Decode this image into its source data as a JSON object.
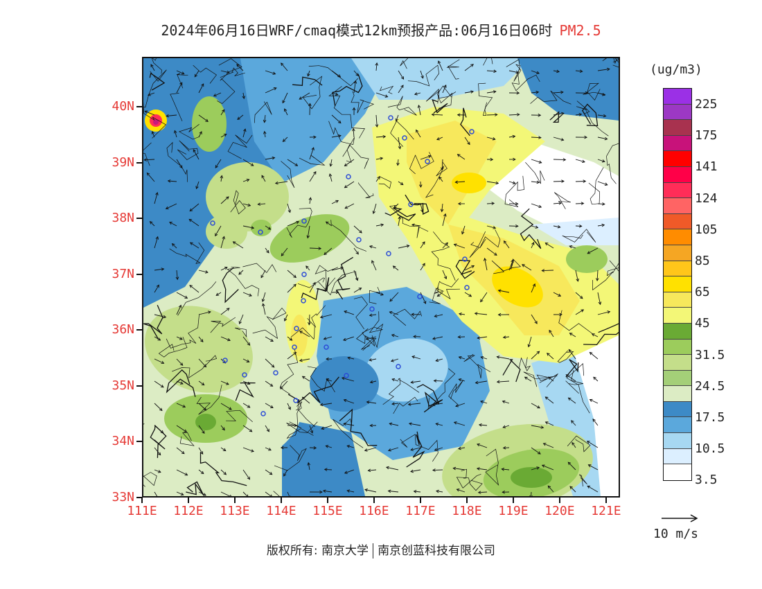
{
  "title": {
    "main": "2024年06月16日WRF/cmaq模式12km预报产品:06月16日06时",
    "variable": "PM2.5"
  },
  "map": {
    "lon_ticks": [
      "111E",
      "112E",
      "113E",
      "114E",
      "115E",
      "116E",
      "117E",
      "118E",
      "119E",
      "120E",
      "121E"
    ],
    "lat_ticks": [
      "40N",
      "39N",
      "38N",
      "37N",
      "36N",
      "35N",
      "34N",
      "33N"
    ],
    "lon_range": [
      111,
      121.3
    ],
    "lat_range": [
      33,
      40.9
    ],
    "fill_colors": {
      "water": "#ffffff",
      "very_clean": "#dcefff",
      "clean": "#a7d8f2",
      "clean_mid": "#5ba8dc",
      "clean_dark": "#3d8ac6",
      "light": "#dcecc4",
      "light_green": "#c4de8a",
      "green": "#9ccc5c",
      "green_dark": "#6aaa34",
      "yellow_pale": "#f3f777",
      "yellow": "#f7e85c",
      "yellow_deep": "#ffe100",
      "hot": "#ff2d58",
      "hot_core": "#c81b7a"
    },
    "stations_color": "#2b4bd6"
  },
  "colorbar": {
    "unit": "(ug/m3)",
    "bins": [
      {
        "color": "#9b30e6"
      },
      {
        "color": "#9c38c4"
      },
      {
        "color": "#a8324f"
      },
      {
        "color": "#c8127a"
      },
      {
        "color": "#ff0000"
      },
      {
        "color": "#ff0048"
      },
      {
        "color": "#ff2d58"
      },
      {
        "color": "#ff6464"
      },
      {
        "color": "#f05a28"
      },
      {
        "color": "#ff8c00"
      },
      {
        "color": "#f5a623"
      },
      {
        "color": "#ffc61a"
      },
      {
        "color": "#ffe100"
      },
      {
        "color": "#f7e85c"
      },
      {
        "color": "#f3f777"
      },
      {
        "color": "#6aaa34"
      },
      {
        "color": "#9ccc5c"
      },
      {
        "color": "#c4de8a"
      },
      {
        "color": "#a4cf78"
      },
      {
        "color": "#dcecc4"
      },
      {
        "color": "#3d8ac6"
      },
      {
        "color": "#5ba8dc"
      },
      {
        "color": "#a7d8f2"
      },
      {
        "color": "#dcefff"
      },
      {
        "color": "#ffffff"
      }
    ],
    "labels": [
      "225",
      "175",
      "141",
      "124",
      "105",
      "85",
      "65",
      "45",
      "31.5",
      "24.5",
      "17.5",
      "10.5",
      "3.5"
    ]
  },
  "wind_reference": {
    "label": "10 m/s"
  },
  "footer": {
    "left": "版权所有: 南京大学",
    "right": "南京创蓝科技有限公司"
  }
}
